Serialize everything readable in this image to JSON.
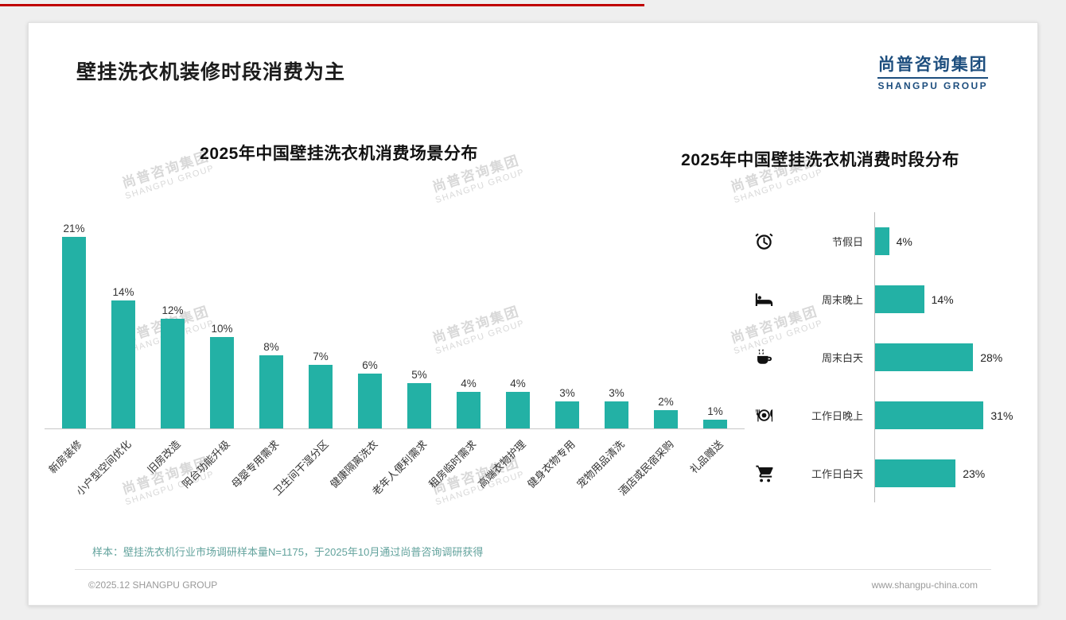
{
  "page": {
    "title": "壁挂洗衣机装修时段消费为主",
    "logo_cn": "尚普咨询集团",
    "logo_en": "SHANGPU GROUP",
    "watermark_cn": "尚普咨询集团",
    "watermark_en": "SHANGPU GROUP",
    "sample_note": "样本：壁挂洗衣机行业市场调研样本量N=1175，于2025年10月通过尚普咨询调研获得",
    "footer_left": "©2025.12 SHANGPU GROUP",
    "footer_right": "www.shangpu-china.com"
  },
  "colors": {
    "accent": "#23b1a5",
    "logo_blue": "#1d4e7e",
    "top_line_red": "#c00000"
  },
  "chart_data": [
    {
      "type": "bar",
      "title": "2025年中国壁挂洗衣机消费场景分布",
      "categories": [
        "新房装修",
        "小户型空间优化",
        "旧房改造",
        "阳台功能升级",
        "母婴专用需求",
        "卫生间干湿分区",
        "健康隔离洗衣",
        "老年人便利需求",
        "租房临时需求",
        "高端衣物护理",
        "健身衣物专用",
        "宠物用品清洗",
        "酒店或民宿采购",
        "礼品赠送"
      ],
      "values": [
        21,
        14,
        12,
        10,
        8,
        7,
        6,
        5,
        4,
        4,
        3,
        3,
        2,
        1
      ],
      "unit": "%",
      "ylim": [
        0,
        22
      ],
      "grid": false,
      "value_labels": true
    },
    {
      "type": "bar-horizontal",
      "title": "2025年中国壁挂洗衣机消费时段分布",
      "categories": [
        "节假日",
        "周末晚上",
        "周末白天",
        "工作日晚上",
        "工作日白天"
      ],
      "values": [
        4,
        14,
        28,
        31,
        23
      ],
      "icons": [
        "alarm-clock",
        "bed",
        "coffee",
        "dining",
        "cart"
      ],
      "unit": "%",
      "xlim": [
        0,
        33
      ],
      "grid": false,
      "value_labels": true
    }
  ]
}
